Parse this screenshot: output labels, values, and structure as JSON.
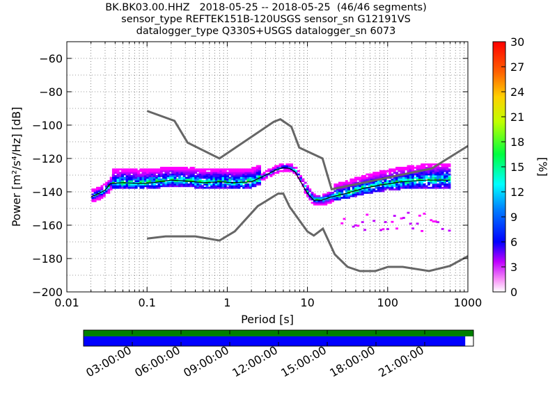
{
  "chart_data": {
    "type": "heatmap",
    "title_lines": [
      "BK.BK03.00.HHZ   2018-05-25 -- 2018-05-25  (46/46 segments)",
      "sensor_type REFTEK151B-120USGS sensor_sn G12191VS",
      "datalogger_type Q330S+USGS datalogger_sn 6073"
    ],
    "xlabel": "Period [s]",
    "ylabel": "Power [m²/s⁴/Hz] [dB]",
    "xscale": "log",
    "xlim": [
      0.01,
      1000
    ],
    "ylim": [
      -200,
      -50
    ],
    "x_ticks": [
      {
        "value": 0.01,
        "label": "0.01"
      },
      {
        "value": 0.1,
        "label": "0.1"
      },
      {
        "value": 1,
        "label": "1"
      },
      {
        "value": 10,
        "label": "10"
      },
      {
        "value": 100,
        "label": "100"
      },
      {
        "value": 1000,
        "label": "1000"
      }
    ],
    "y_ticks": [
      -60,
      -80,
      -100,
      -120,
      -140,
      -160,
      -180,
      -200
    ],
    "grid": true,
    "colorbar": {
      "label": "[%]",
      "range": [
        0,
        30
      ],
      "ticks": [
        0,
        3,
        6,
        9,
        12,
        15,
        18,
        21,
        24,
        27,
        30
      ]
    },
    "noise_models": [
      {
        "name": "NHNM",
        "x": [
          0.1,
          0.22,
          0.32,
          0.8,
          3.8,
          4.6,
          6.3,
          7.9,
          15.4,
          20,
          354.8,
          1000
        ],
        "y": [
          -91.5,
          -97.4,
          -110.5,
          -120,
          -98,
          -96.5,
          -101,
          -113.5,
          -120,
          -138.5,
          -126,
          -112.5
        ]
      },
      {
        "name": "NLNM",
        "x": [
          0.1,
          0.17,
          0.4,
          0.8,
          1.24,
          2.4,
          4.3,
          5,
          6,
          10,
          12,
          15.6,
          21.9,
          31.6,
          45,
          70,
          101,
          154,
          328,
          600,
          1000
        ],
        "y": [
          -168,
          -166.7,
          -166.7,
          -169.2,
          -163.7,
          -148.6,
          -141.1,
          -141.1,
          -149,
          -163.8,
          -166.2,
          -162.1,
          -177.5,
          -185,
          -187.5,
          -187.5,
          -185,
          -185,
          -187.5,
          -184.4,
          -178.6
        ]
      }
    ],
    "mean_curve": {
      "x": [
        0.02,
        0.025,
        0.03,
        0.035,
        0.05,
        0.08,
        0.12,
        0.2,
        0.3,
        0.5,
        0.8,
        1.2,
        2,
        3,
        4,
        5,
        6,
        7,
        8,
        10,
        12,
        15,
        20,
        30,
        50,
        80,
        150,
        300,
        600
      ],
      "y": [
        -143,
        -141,
        -139,
        -135,
        -134.5,
        -135,
        -134.5,
        -133,
        -133.5,
        -134.5,
        -134,
        -134.5,
        -134,
        -130,
        -127,
        -125.5,
        -126,
        -128,
        -133,
        -141,
        -145,
        -145,
        -143,
        -141,
        -138,
        -136,
        -134,
        -133,
        -133
      ]
    },
    "timeline": {
      "tick_labels": [
        "03:00:00",
        "06:00:00",
        "09:00:00",
        "12:00:00",
        "15:00:00",
        "18:00:00",
        "21:00:00"
      ],
      "coverage": 0.979,
      "data_color": "#0000ff",
      "segment_color": "#008000"
    }
  }
}
